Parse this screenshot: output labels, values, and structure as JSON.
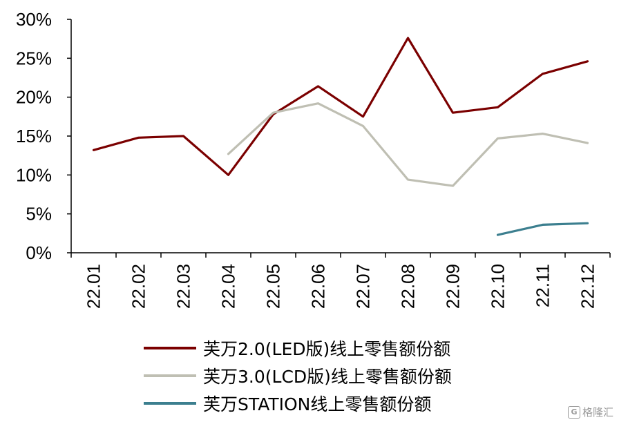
{
  "chart_data": {
    "type": "line",
    "title": "",
    "xlabel": "",
    "ylabel": "",
    "categories": [
      "22.01",
      "22.02",
      "22.03",
      "22.04",
      "22.05",
      "22.06",
      "22.07",
      "22.08",
      "22.09",
      "22.10",
      "22.11",
      "22.12"
    ],
    "y_ticks": [
      "0%",
      "5%",
      "10%",
      "15%",
      "20%",
      "25%",
      "30%"
    ],
    "ylim": [
      0,
      30
    ],
    "y_unit": "%",
    "grid": false,
    "legend_position": "bottom",
    "series": [
      {
        "name": "芙万2.0(LED版)线上零售额份额",
        "color": "#7b0000",
        "values": [
          13.2,
          14.8,
          15.0,
          10.0,
          17.8,
          21.4,
          17.5,
          27.6,
          18.0,
          18.7,
          23.0,
          24.6
        ]
      },
      {
        "name": "芙万3.0(LCD版)线上零售额份额",
        "color": "#bfbfb3",
        "values": [
          null,
          null,
          null,
          12.7,
          18.0,
          19.2,
          16.3,
          9.4,
          8.6,
          14.7,
          15.3,
          14.1
        ]
      },
      {
        "name": "芙万STATION线上零售额份额",
        "color": "#3c7f8f",
        "values": [
          null,
          null,
          null,
          null,
          null,
          null,
          null,
          null,
          null,
          2.3,
          3.6,
          3.8
        ]
      }
    ]
  },
  "watermark": {
    "text": "格隆汇",
    "logo_letter": "G"
  }
}
